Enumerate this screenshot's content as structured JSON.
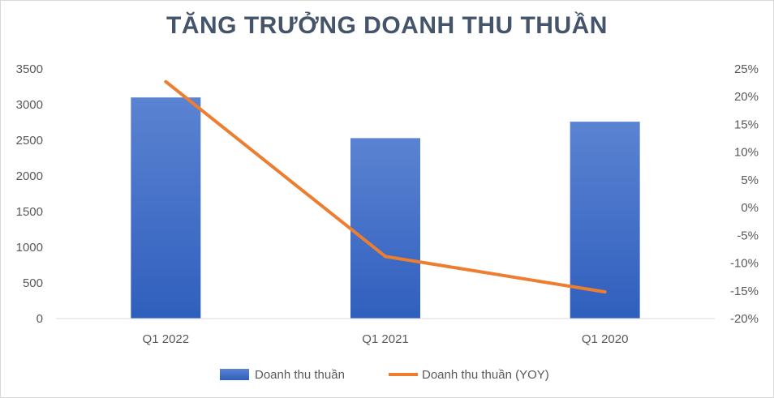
{
  "chart_data": {
    "type": "bar",
    "title": "TĂNG TRƯỞNG DOANH THU THUẦN",
    "categories": [
      "Q1 2022",
      "Q1 2021",
      "Q1 2020"
    ],
    "series": [
      {
        "name": "Doanh thu thuần",
        "type": "bar",
        "axis": "left",
        "values": [
          3100,
          2530,
          2760
        ],
        "color": "#4472c4"
      },
      {
        "name": "Doanh thu thuần (YOY)",
        "type": "line",
        "axis": "right",
        "values": [
          22.7,
          -8.8,
          -15.2
        ],
        "color": "#ed7d31"
      }
    ],
    "y_left": {
      "min": 0,
      "max": 3500,
      "step": 500,
      "tick_labels": [
        "0",
        "500",
        "1000",
        "1500",
        "2000",
        "2500",
        "3000",
        "3500"
      ]
    },
    "y_right": {
      "min": -20,
      "max": 25,
      "step": 5,
      "tick_labels": [
        "-20%",
        "-15%",
        "-10%",
        "-5%",
        "0%",
        "5%",
        "10%",
        "15%",
        "20%",
        "25%"
      ]
    },
    "grid": false,
    "legend": "bottom"
  }
}
